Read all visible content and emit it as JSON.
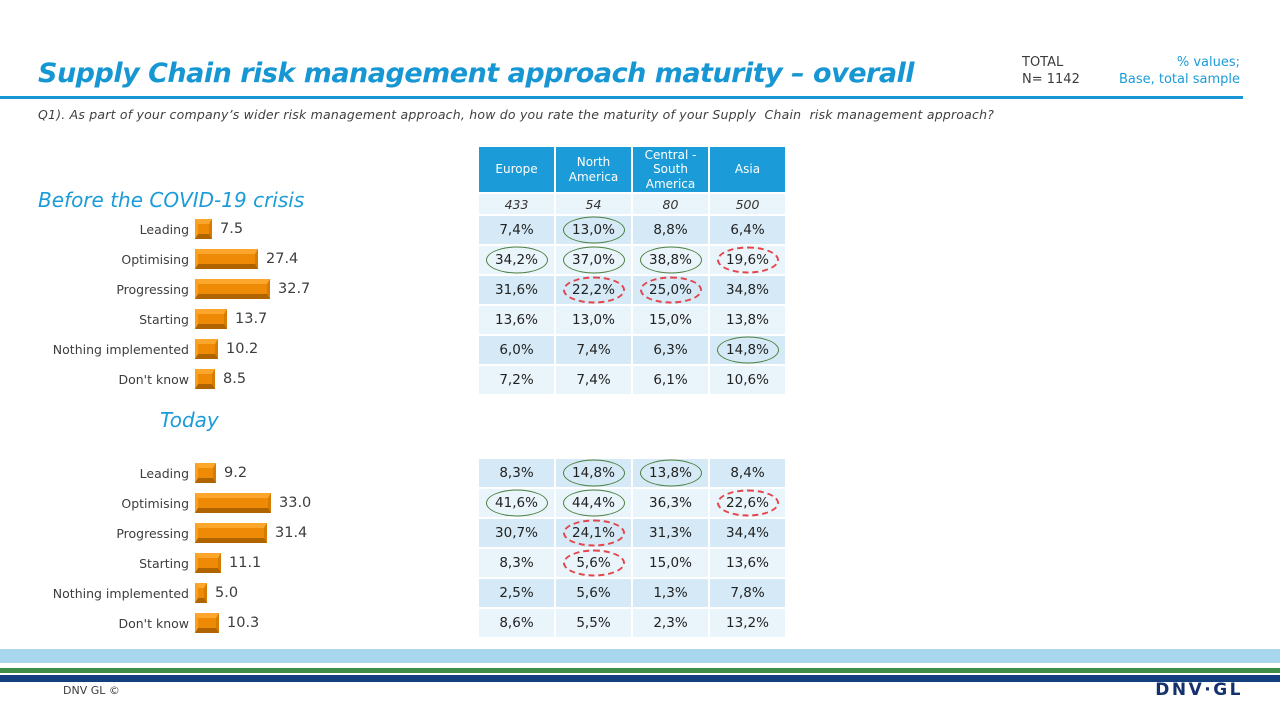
{
  "header": {
    "title": "Supply Chain risk management approach maturity – overall",
    "total_label": "TOTAL",
    "total_n": "N= 1142",
    "note_line1": "% values;",
    "note_line2": "Base, total sample",
    "question": "Q1). As part of your company’s wider risk management approach, how do you rate the maturity of your Supply  Chain  risk management approach?"
  },
  "colors": {
    "accent_blue": "#1697D3",
    "table_header_blue": "#1B9CD8",
    "row_dark": "#D5EAF6",
    "row_light": "#EAF5FB",
    "bar_orange": "#EE8A05",
    "green_highlight": "#4C8040",
    "red_highlight": "#E3454A",
    "footer_lightblue": "#A9D7EE",
    "footer_green": "#3E8E49",
    "footer_navy": "#133E80"
  },
  "chart_data": [
    {
      "type": "bar",
      "orientation": "horizontal",
      "title": "Before the COVID-19 crisis",
      "categories": [
        "Leading",
        "Optimising",
        "Progressing",
        "Starting",
        "Nothing implemented",
        "Don't know"
      ],
      "values": [
        7.5,
        27.4,
        32.7,
        13.7,
        10.2,
        8.5
      ],
      "value_labels": [
        "7.5",
        "27.4",
        "32.7",
        "13.7",
        "10.2",
        "8.5"
      ],
      "xlim": [
        0,
        40
      ],
      "bar_color": "#EE8A05",
      "grid": false,
      "legend": false
    },
    {
      "type": "bar",
      "orientation": "horizontal",
      "title": "Today",
      "categories": [
        "Leading",
        "Optimising",
        "Progressing",
        "Starting",
        "Nothing implemented",
        "Don't know"
      ],
      "values": [
        9.2,
        33.0,
        31.4,
        11.1,
        5.0,
        10.3
      ],
      "value_labels": [
        "9.2",
        "33.0",
        "31.4",
        "11.1",
        "5.0",
        "10.3"
      ],
      "xlim": [
        0,
        40
      ],
      "bar_color": "#EE8A05",
      "grid": false,
      "legend": false
    }
  ],
  "tables": {
    "columns": [
      "Europe",
      "North America",
      "Central - South America",
      "Asia"
    ],
    "base_values": [
      "433",
      "54",
      "80",
      "500"
    ],
    "before": {
      "rows": [
        {
          "label": "Leading",
          "values": [
            "7,4%",
            "13,0%",
            "8,8%",
            "6,4%"
          ],
          "highlights": [
            null,
            "green",
            null,
            null
          ]
        },
        {
          "label": "Optimising",
          "values": [
            "34,2%",
            "37,0%",
            "38,8%",
            "19,6%"
          ],
          "highlights": [
            "green",
            "green",
            "green",
            "red"
          ]
        },
        {
          "label": "Progressing",
          "values": [
            "31,6%",
            "22,2%",
            "25,0%",
            "34,8%"
          ],
          "highlights": [
            null,
            "red",
            "red",
            null
          ]
        },
        {
          "label": "Starting",
          "values": [
            "13,6%",
            "13,0%",
            "15,0%",
            "13,8%"
          ],
          "highlights": [
            null,
            null,
            null,
            null
          ]
        },
        {
          "label": "Nothing implemented",
          "values": [
            "6,0%",
            "7,4%",
            "6,3%",
            "14,8%"
          ],
          "highlights": [
            null,
            null,
            null,
            "green"
          ]
        },
        {
          "label": "Don't know",
          "values": [
            "7,2%",
            "7,4%",
            "6,1%",
            "10,6%"
          ],
          "highlights": [
            null,
            null,
            null,
            null
          ]
        }
      ]
    },
    "today": {
      "rows": [
        {
          "label": "Leading",
          "values": [
            "8,3%",
            "14,8%",
            "13,8%",
            "8,4%"
          ],
          "highlights": [
            null,
            "green",
            "green",
            null
          ]
        },
        {
          "label": "Optimising",
          "values": [
            "41,6%",
            "44,4%",
            "36,3%",
            "22,6%"
          ],
          "highlights": [
            "green",
            "green",
            null,
            "red"
          ]
        },
        {
          "label": "Progressing",
          "values": [
            "30,7%",
            "24,1%",
            "31,3%",
            "34,4%"
          ],
          "highlights": [
            null,
            "red",
            null,
            null
          ]
        },
        {
          "label": "Starting",
          "values": [
            "8,3%",
            "5,6%",
            "15,0%",
            "13,6%"
          ],
          "highlights": [
            null,
            "red",
            null,
            null
          ]
        },
        {
          "label": "Nothing implemented",
          "values": [
            "2,5%",
            "5,6%",
            "1,3%",
            "7,8%"
          ],
          "highlights": [
            null,
            null,
            null,
            null
          ]
        },
        {
          "label": "Don't know",
          "values": [
            "8,6%",
            "5,5%",
            "2,3%",
            "13,2%"
          ],
          "highlights": [
            null,
            null,
            null,
            null
          ]
        }
      ]
    }
  },
  "footer": {
    "copyright": "DNV GL ©",
    "logo": "DNV·GL"
  }
}
